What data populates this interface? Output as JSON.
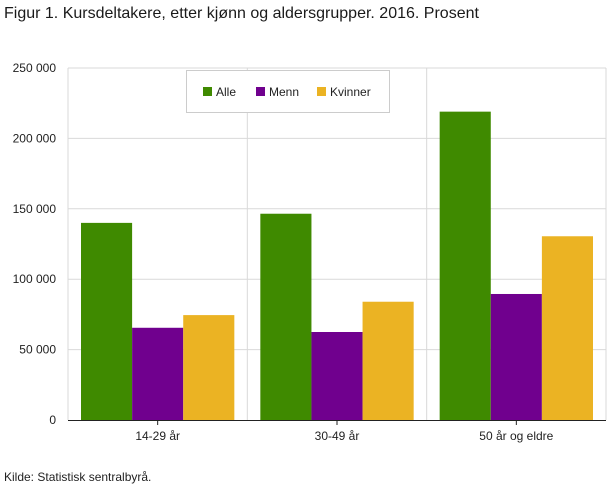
{
  "title": "Figur 1. Kursdeltakere, etter kjønn og aldersgrupper. 2016. Prosent",
  "source": "Kilde: Statistisk sentralbyrå.",
  "chart_data": {
    "type": "bar",
    "categories": [
      "14-29 år",
      "30-49 år",
      "50 år og eldre"
    ],
    "series": [
      {
        "name": "Alle",
        "color": "#3f8a00",
        "values": [
          140000,
          146500,
          219000
        ]
      },
      {
        "name": "Menn",
        "color": "#70008e",
        "values": [
          65500,
          62500,
          89500
        ]
      },
      {
        "name": "Kvinner",
        "color": "#ebb323",
        "values": [
          74500,
          84000,
          130500
        ]
      }
    ],
    "yticks": [
      "0",
      "50 000",
      "100 000",
      "150 000",
      "200 000",
      "250 000"
    ],
    "ylim": [
      0,
      250000
    ],
    "legend_position": "top-left",
    "grid": true
  }
}
